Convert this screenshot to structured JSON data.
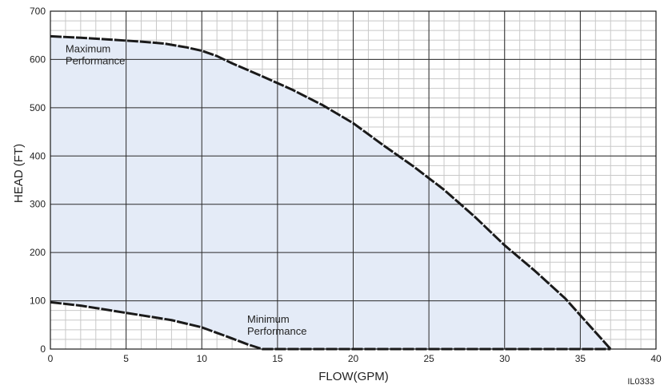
{
  "chart_data": {
    "type": "area",
    "xlabel": "FLOW(GPM)",
    "ylabel": "HEAD (FT)",
    "xlim": [
      0,
      40
    ],
    "ylim": [
      0,
      700
    ],
    "x_ticks": [
      0,
      5,
      10,
      15,
      20,
      25,
      30,
      35,
      40
    ],
    "y_ticks": [
      0,
      100,
      200,
      300,
      400,
      500,
      600,
      700
    ],
    "grid": true,
    "series": [
      {
        "name": "Maximum Performance",
        "x": [
          0,
          2,
          4,
          6,
          7.5,
          9,
          10,
          11,
          12,
          14,
          16,
          18,
          20,
          22,
          24,
          26,
          28,
          30,
          32,
          34,
          35,
          36,
          37
        ],
        "y": [
          648,
          645,
          641,
          637,
          633,
          625,
          618,
          607,
          592,
          565,
          537,
          505,
          468,
          422,
          378,
          330,
          275,
          215,
          162,
          105,
          70,
          35,
          0
        ]
      },
      {
        "name": "Minimum Performance",
        "x": [
          0,
          2,
          4,
          6,
          8,
          10,
          12,
          13,
          14,
          37
        ],
        "y": [
          97,
          90,
          80,
          70,
          60,
          45,
          22,
          10,
          0,
          0
        ]
      }
    ],
    "annotations": [
      {
        "text_line1": "Maximum",
        "text_line2": "Performance",
        "x": 1,
        "y": 615
      },
      {
        "text_line1": "Minimum",
        "text_line2": "Performance",
        "x": 13,
        "y": 55
      }
    ],
    "figure_code": "IL0333",
    "colors": {
      "fill": "#e4ebf7",
      "line": "#1a1a1a",
      "major_grid": "#2a2a2a",
      "minor_grid": "#c8c8c8"
    }
  }
}
